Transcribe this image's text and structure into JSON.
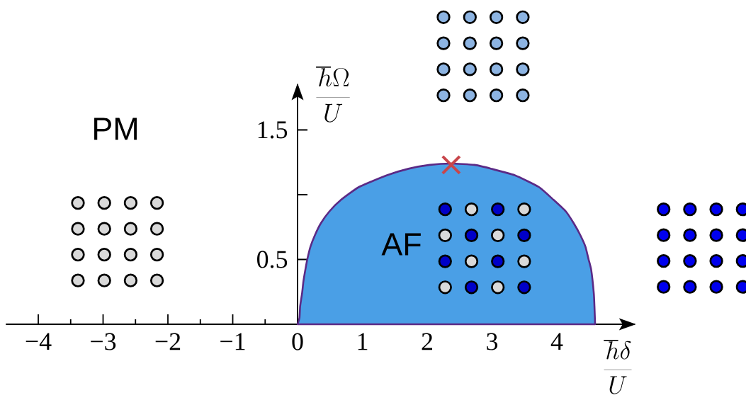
{
  "chart_data": {
    "type": "area",
    "xlabel": "\\frac{\\hbar\\delta}{U}",
    "ylabel": "\\frac{\\hbar\\Omega}{U}",
    "xlim": [
      -4.5,
      5.2
    ],
    "ylim": [
      0,
      1.85
    ],
    "xticks": [
      {
        "value": -4,
        "label": "−4"
      },
      {
        "value": -3.5,
        "label": null
      },
      {
        "value": -3,
        "label": "−3"
      },
      {
        "value": -2.5,
        "label": null
      },
      {
        "value": -2,
        "label": "−2"
      },
      {
        "value": -1.5,
        "label": null
      },
      {
        "value": -1,
        "label": "−1"
      },
      {
        "value": -0.5,
        "label": null
      },
      0,
      {
        "value": 0.5,
        "label": null
      },
      1,
      {
        "value": 1.5,
        "label": null
      },
      2,
      {
        "value": 2.5,
        "label": null
      },
      3,
      {
        "value": 3.5,
        "label": null
      },
      4,
      {
        "value": 4.5,
        "label": null
      }
    ],
    "yticks": [
      0.5,
      {
        "value": 1,
        "label": null
      },
      1.5
    ],
    "series": [
      {
        "color": "#4a9fe6",
        "x": [
          0,
          0.03,
          0.04,
          0.07,
          0.09,
          0.12,
          0.15,
          0.2,
          0.27,
          0.36,
          0.49,
          0.67,
          0.95,
          1.38,
          1.71,
          2.04,
          2.37,
          2.73,
          2.99,
          3.35,
          3.72,
          3.95,
          4.14,
          4.26,
          4.36,
          4.44,
          4.49,
          4.53,
          4.57,
          4.58,
          4.59
        ],
        "values": [
          0,
          0.05,
          0.14,
          0.24,
          0.33,
          0.42,
          0.5,
          0.6,
          0.69,
          0.78,
          0.87,
          0.96,
          1.06,
          1.15,
          1.2,
          1.23,
          1.24,
          1.23,
          1.2,
          1.15,
          1.06,
          0.96,
          0.87,
          0.78,
          0.69,
          0.6,
          0.5,
          0.42,
          0.24,
          0.14,
          0
        ]
      },
      {
        "type": "scatter",
        "color": "#c8464b",
        "marker": "cross",
        "x": [
          2.37
        ],
        "values": [
          1.23
        ]
      }
    ],
    "annotations": [
      "PM",
      "AF"
    ]
  }
}
